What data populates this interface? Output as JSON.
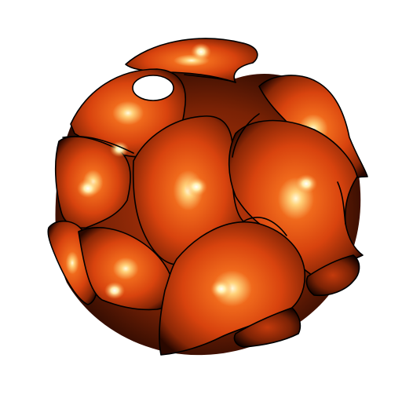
{
  "scene": {
    "subject_icon": "triply-periodic-minimal-surface",
    "background_color": "#ffffff",
    "surface_color": "#e34a10",
    "shadow_color": "#1a0500",
    "highlight_color": "#fff6c8",
    "outline_color": "#000000"
  }
}
